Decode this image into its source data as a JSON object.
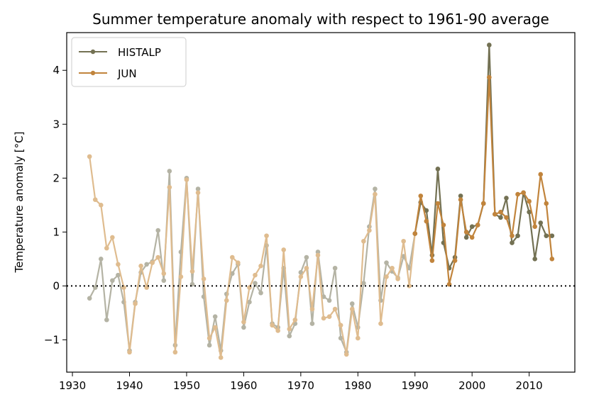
{
  "chart_data": {
    "type": "line",
    "title": "Summer temperature anomaly with respect to 1961-90 average",
    "xlabel": "",
    "ylabel": "Temperature anomaly [°C]",
    "xlim": [
      1929,
      2018
    ],
    "ylim": [
      -1.6,
      4.7
    ],
    "xticks": [
      1930,
      1940,
      1950,
      1960,
      1970,
      1980,
      1990,
      2000,
      2010
    ],
    "yticks": [
      -1,
      0,
      1,
      2,
      3,
      4
    ],
    "ytick_labels": [
      "−1",
      "0",
      "1",
      "2",
      "3",
      "4"
    ],
    "reference_line": {
      "y": 0,
      "style": "dotted",
      "color": "#000000"
    },
    "legend": {
      "position": "top-left",
      "entries": [
        "HISTALP",
        "JUN"
      ]
    },
    "highlight_from_year": 1990,
    "series": [
      {
        "name": "HISTALP",
        "color": "#737153",
        "faded_color": "#b4b3a4",
        "x": [
          1933,
          1934,
          1935,
          1936,
          1937,
          1938,
          1939,
          1940,
          1941,
          1942,
          1943,
          1944,
          1945,
          1946,
          1947,
          1948,
          1949,
          1950,
          1951,
          1952,
          1953,
          1954,
          1955,
          1956,
          1957,
          1958,
          1959,
          1960,
          1961,
          1962,
          1963,
          1964,
          1965,
          1966,
          1967,
          1968,
          1969,
          1970,
          1971,
          1972,
          1973,
          1974,
          1975,
          1976,
          1977,
          1978,
          1979,
          1980,
          1981,
          1982,
          1983,
          1984,
          1985,
          1986,
          1987,
          1988,
          1989,
          1990,
          1991,
          1992,
          1993,
          1994,
          1995,
          1996,
          1997,
          1998,
          1999,
          2000,
          2001,
          2002,
          2003,
          2004,
          2005,
          2006,
          2007,
          2008,
          2009,
          2010,
          2011,
          2012,
          2013,
          2014
        ],
        "values": [
          -0.23,
          -0.03,
          0.5,
          -0.63,
          0.1,
          0.2,
          -0.3,
          -1.2,
          -0.3,
          0.25,
          0.4,
          0.45,
          1.03,
          0.1,
          2.13,
          -1.1,
          0.63,
          2.0,
          0.03,
          1.8,
          -0.2,
          -1.1,
          -0.57,
          -1.2,
          -0.15,
          0.23,
          0.4,
          -0.77,
          -0.3,
          0.05,
          -0.13,
          0.75,
          -0.7,
          -0.77,
          0.33,
          -0.93,
          -0.7,
          0.25,
          0.53,
          -0.7,
          0.63,
          -0.2,
          -0.27,
          0.33,
          -0.97,
          -1.23,
          -0.33,
          -0.77,
          0.05,
          1.1,
          1.8,
          -0.27,
          0.43,
          0.27,
          0.15,
          0.55,
          0.33,
          0.97,
          1.55,
          1.4,
          0.57,
          2.17,
          0.8,
          0.33,
          0.53,
          1.67,
          0.9,
          1.1,
          1.13,
          1.53,
          4.47,
          1.33,
          1.27,
          1.63,
          0.8,
          0.93,
          1.73,
          1.37,
          0.5,
          1.17,
          0.93,
          0.93
        ]
      },
      {
        "name": "JUN",
        "color": "#c1843c",
        "faded_color": "#dfbc8f",
        "x": [
          1933,
          1934,
          1935,
          1936,
          1937,
          1938,
          1939,
          1940,
          1941,
          1942,
          1943,
          1944,
          1945,
          1946,
          1947,
          1948,
          1949,
          1950,
          1951,
          1952,
          1953,
          1954,
          1955,
          1956,
          1957,
          1958,
          1959,
          1960,
          1961,
          1962,
          1963,
          1964,
          1965,
          1966,
          1967,
          1968,
          1969,
          1970,
          1971,
          1972,
          1973,
          1974,
          1975,
          1976,
          1977,
          1978,
          1979,
          1980,
          1981,
          1982,
          1983,
          1984,
          1985,
          1986,
          1987,
          1988,
          1989,
          1990,
          1991,
          1992,
          1993,
          1994,
          1995,
          1996,
          1997,
          1998,
          1999,
          2000,
          2001,
          2002,
          2003,
          2004,
          2005,
          2006,
          2007,
          2008,
          2009,
          2010,
          2011,
          2012,
          2013,
          2014
        ],
        "values": [
          2.4,
          1.6,
          1.5,
          0.7,
          0.9,
          0.4,
          -0.03,
          -1.23,
          -0.33,
          0.37,
          -0.03,
          0.43,
          0.53,
          0.23,
          1.83,
          -1.23,
          0.17,
          1.97,
          0.27,
          1.73,
          0.13,
          -0.97,
          -0.77,
          -1.33,
          -0.27,
          0.53,
          0.43,
          -0.67,
          -0.03,
          0.2,
          0.37,
          0.93,
          -0.73,
          -0.83,
          0.67,
          -0.8,
          -0.63,
          0.17,
          0.33,
          -0.43,
          0.57,
          -0.6,
          -0.57,
          -0.43,
          -0.73,
          -1.27,
          -0.43,
          -0.97,
          0.83,
          1.03,
          1.7,
          -0.7,
          0.17,
          0.33,
          0.13,
          0.83,
          0.0,
          0.97,
          1.67,
          1.2,
          0.47,
          1.53,
          1.13,
          0.03,
          0.47,
          1.6,
          1.0,
          0.9,
          1.13,
          1.53,
          3.87,
          1.33,
          1.37,
          1.27,
          0.93,
          1.7,
          1.73,
          1.57,
          1.1,
          2.07,
          1.53,
          0.5
        ]
      }
    ]
  }
}
